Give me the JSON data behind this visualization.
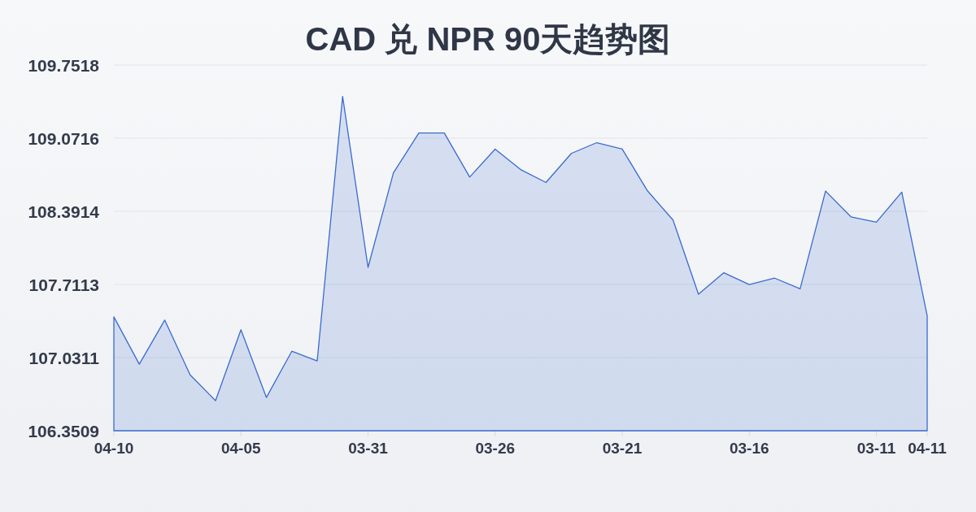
{
  "chart_data": {
    "type": "area",
    "title": "CAD 兑 NPR 90天趋势图",
    "categories": [
      "04-10",
      null,
      null,
      null,
      null,
      "04-05",
      null,
      null,
      null,
      null,
      "03-31",
      null,
      null,
      null,
      null,
      "03-26",
      null,
      null,
      null,
      null,
      "03-21",
      null,
      null,
      null,
      null,
      "03-16",
      null,
      null,
      null,
      null,
      "03-11",
      null,
      "04-11"
    ],
    "values": [
      107.41,
      106.97,
      107.38,
      106.87,
      106.63,
      107.29,
      106.66,
      107.09,
      107.0,
      109.46,
      107.87,
      108.75,
      109.12,
      109.12,
      108.71,
      108.97,
      108.78,
      108.66,
      108.93,
      109.03,
      108.97,
      108.58,
      108.31,
      107.62,
      107.82,
      107.71,
      107.77,
      107.67,
      108.58,
      108.34,
      108.29,
      108.57,
      107.42
    ],
    "color": "#3a6bd0",
    "ylim": [
      106.3509,
      109.7518
    ],
    "yticks": [
      106.3509,
      107.0311,
      107.7113,
      108.3914,
      109.0716,
      109.7518
    ],
    "grid": "y"
  }
}
